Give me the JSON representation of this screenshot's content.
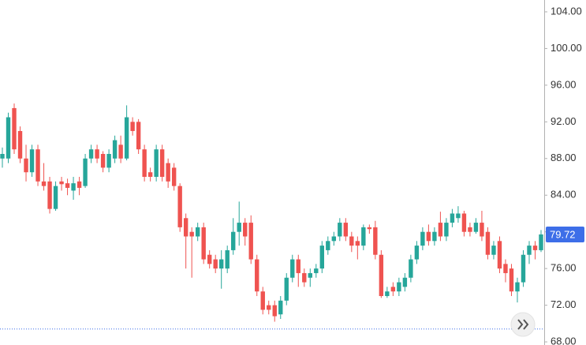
{
  "chart_data": {
    "type": "candlestick",
    "open": [
      88,
      88,
      93.5,
      91,
      88,
      86.5,
      89,
      85.5,
      85.5,
      82.5,
      85.5,
      85.3,
      84.5,
      85.5,
      85,
      88,
      89,
      88.5,
      87,
      88,
      89.5,
      88,
      92,
      92,
      89,
      86.5,
      86,
      89,
      87.5,
      87,
      85,
      81.5,
      80,
      79.5,
      80.5,
      77.5,
      77,
      76,
      76,
      78,
      80,
      81,
      81,
      77,
      73.5,
      72,
      72,
      71,
      72.5,
      75,
      77,
      75.5,
      75,
      75.5,
      76,
      78,
      79,
      79.5,
      81,
      79.5,
      79,
      78.5,
      80.5,
      80.5,
      77.5,
      73,
      74,
      73.5,
      74,
      75,
      77,
      78.5,
      80,
      79,
      81,
      79.5,
      81,
      81.5,
      82,
      80.5,
      80,
      81,
      80,
      77.5,
      79,
      76.5,
      76,
      73.5,
      74.5,
      77.5,
      78.5,
      78
    ],
    "high": [
      89.2,
      93,
      94,
      91.5,
      89.5,
      89.5,
      89.5,
      87.5,
      86,
      85.5,
      86,
      85.8,
      86,
      86,
      88.5,
      89.5,
      89.5,
      88.8,
      89,
      90.5,
      90.5,
      93.8,
      92.5,
      92.3,
      89.5,
      87,
      89.5,
      89.5,
      88,
      87.5,
      85.3,
      82,
      80.5,
      81,
      81,
      78,
      77.5,
      78,
      78.5,
      81.5,
      83.3,
      81.5,
      81.8,
      77.5,
      74,
      72.5,
      72.5,
      73,
      75.5,
      77.5,
      77.5,
      76,
      76,
      76.5,
      79,
      79.5,
      80,
      81.5,
      81.5,
      80,
      79.5,
      80.8,
      80.8,
      81.2,
      78,
      74,
      74.5,
      75,
      75.5,
      77.5,
      79,
      80.5,
      80.8,
      80.5,
      82.2,
      81.5,
      82.5,
      82.8,
      82.3,
      81,
      81.5,
      82.3,
      80.5,
      79,
      79.5,
      77,
      76.5,
      75,
      78,
      79,
      79,
      80.2
    ],
    "low": [
      87,
      87.5,
      88.5,
      87.5,
      85.5,
      86,
      85,
      84.5,
      82,
      82.3,
      84.5,
      84,
      83.5,
      84,
      84.8,
      87.5,
      87.5,
      86.5,
      86.5,
      87.5,
      87.5,
      87.8,
      90.5,
      88.5,
      85.5,
      85.5,
      85.5,
      85.5,
      84.8,
      84.5,
      80,
      76,
      75,
      79,
      76.5,
      76,
      75.5,
      73.8,
      75.5,
      77.5,
      78.5,
      78.5,
      76.5,
      73,
      71,
      71,
      70.2,
      70.5,
      72,
      74.5,
      74,
      74,
      74,
      75,
      75.5,
      77.5,
      78.5,
      79,
      79,
      77.8,
      77,
      78,
      79.8,
      77,
      72.8,
      72.8,
      73,
      73,
      73.5,
      74.5,
      76.5,
      78,
      78.5,
      78.5,
      79,
      79,
      80.5,
      81,
      79.5,
      79.5,
      79.8,
      79,
      77,
      77,
      75.5,
      74.5,
      73,
      72.3,
      74,
      76.5,
      77,
      77.8
    ],
    "close": [
      88.5,
      92.5,
      89,
      88,
      86.5,
      89,
      85.5,
      85,
      82.5,
      85,
      85.2,
      84.8,
      85.3,
      84.8,
      88,
      89,
      88,
      87,
      88.5,
      90,
      88,
      92.5,
      91,
      89,
      86,
      86,
      89,
      86,
      85.5,
      85,
      80.5,
      79.5,
      79.5,
      80.5,
      77,
      76.5,
      76,
      77,
      78,
      80,
      81,
      79.5,
      77,
      73.5,
      71.5,
      71.5,
      70.8,
      72.5,
      75,
      77,
      75.5,
      74.5,
      75.5,
      76,
      78.5,
      79,
      79.5,
      81,
      79.5,
      78.5,
      78.5,
      80.5,
      80.3,
      77.5,
      73,
      73.5,
      73.5,
      74.5,
      75,
      77,
      78.5,
      80,
      79,
      80,
      79.5,
      81,
      82,
      82,
      80,
      80,
      81,
      79.5,
      77.5,
      78.5,
      76,
      75.5,
      73.5,
      74.5,
      77.5,
      78.5,
      78,
      79.72
    ],
    "up_color": "#26a69a",
    "down_color": "#ef5350",
    "ylim": [
      67.66,
      105.29
    ],
    "yticks": [
      {
        "value": 68,
        "label": "68.00"
      },
      {
        "value": 72,
        "label": "72.00"
      },
      {
        "value": 76,
        "label": "76.00"
      },
      {
        "value": 80,
        "label": "80.00"
      },
      {
        "value": 84,
        "label": "84.00"
      },
      {
        "value": 88,
        "label": "88.00"
      },
      {
        "value": 92,
        "label": "92.00"
      },
      {
        "value": 96,
        "label": "96.00"
      },
      {
        "value": 100,
        "label": "100.00"
      },
      {
        "value": 104,
        "label": "104.00"
      }
    ],
    "last_price": 79.72,
    "last_price_color": "#3d6ee8",
    "reference_line": 69.4,
    "reference_color": "#3d6ee8"
  }
}
